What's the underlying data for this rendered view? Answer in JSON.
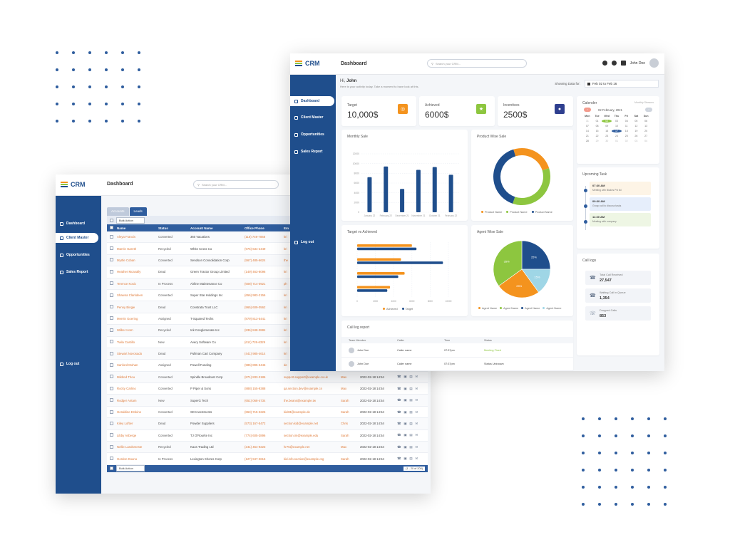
{
  "colors": {
    "primary": "#1f4e8c",
    "header_blue": "#2f5d9e",
    "orange": "#f4931e",
    "green": "#8dc63f",
    "light_blue": "#9fd6e6",
    "link_orange": "#e07b39"
  },
  "leads_window": {
    "logo": "CRM",
    "page_title": "Dashboard",
    "search_placeholder": "Search your CRM...",
    "nav": [
      {
        "label": "Dashboard",
        "icon": "grid-icon"
      },
      {
        "label": "Client Master",
        "icon": "user-icon"
      },
      {
        "label": "Opportunities",
        "icon": "target-icon"
      },
      {
        "label": "Sales Report",
        "icon": "report-icon"
      },
      {
        "label": "Log out",
        "icon": "logout-icon"
      }
    ],
    "tabs": [
      "Accounts",
      "Leads"
    ],
    "bulk_action": "Bulk Action",
    "columns": [
      "Name",
      "Status",
      "Account Name",
      "Office Phone",
      "Em"
    ],
    "rows": [
      {
        "name": "Aleya Francis",
        "status": "Converted",
        "account": "360 Vacations",
        "phone": "(116) 749-7068",
        "email": "kri",
        "owner": "",
        "date": ""
      },
      {
        "name": "Marvin Gareth",
        "status": "Recycled",
        "account": "White Cross Co",
        "phone": "(975) 634-2449",
        "email": "kri",
        "owner": "",
        "date": ""
      },
      {
        "name": "Myrtle Coban",
        "status": "Converted",
        "account": "Sendson Consolidation Corp",
        "phone": "(567) 485-6624",
        "email": "the",
        "owner": "",
        "date": ""
      },
      {
        "name": "Heather Mcanally",
        "status": "Dead",
        "account": "Green Tractor Group Limited",
        "phone": "(149) 463-8096",
        "email": "kri",
        "owner": "",
        "date": ""
      },
      {
        "name": "Terence Kosic",
        "status": "In Process",
        "account": "Airline Maintenance Co",
        "phone": "(608) 714-0921",
        "email": "ph",
        "owner": "",
        "date": ""
      },
      {
        "name": "Shawna Clarkdeen",
        "status": "Converted",
        "account": "Super Star Holdings Inc",
        "phone": "(656) 983-2156",
        "email": "kri",
        "owner": "",
        "date": ""
      },
      {
        "name": "Penny Bingie",
        "status": "Dead",
        "account": "Constrata Trust LLC",
        "phone": "(965) 609-0562",
        "email": "kri",
        "owner": "",
        "date": ""
      },
      {
        "name": "Mervin Goering",
        "status": "Assigned",
        "account": "T-Squared Techs",
        "phone": "(879) 813-5441",
        "email": "kri",
        "owner": "",
        "date": ""
      },
      {
        "name": "Wilber Horn",
        "status": "Recycled",
        "account": "Ink Conglomerate Inc",
        "phone": "(836) 848-3884",
        "email": "kri",
        "owner": "",
        "date": ""
      },
      {
        "name": "Twila Castillo",
        "status": "New",
        "account": "Avery Software Co",
        "phone": "(611) 726-6329",
        "email": "kri",
        "owner": "",
        "date": ""
      },
      {
        "name": "Stewart Novosado",
        "status": "Dead",
        "account": "Pullman Cart Company",
        "phone": "(441) 985-4614",
        "email": "kri",
        "owner": "",
        "date": ""
      },
      {
        "name": "Sanford Mohan",
        "status": "Assigned",
        "account": "Powell Funding",
        "phone": "(985) 895-3446",
        "email": "de",
        "owner": "",
        "date": ""
      },
      {
        "name": "Mildred Thou",
        "status": "Converted",
        "account": "Spindle Broadcast Corp",
        "phone": "(871) 833-3186",
        "email": "support.support@example.co.uk",
        "owner": "Max",
        "date": "2022-02-18 14:54"
      },
      {
        "name": "Rocky Carlino",
        "status": "Converted",
        "account": "P Piper & Sons",
        "phone": "(888) 155-9388",
        "email": "qa.section.dev@example.cn",
        "owner": "Max",
        "date": "2022-02-18 14:54"
      },
      {
        "name": "Rodger Antam",
        "status": "New",
        "account": "SuperG Tech",
        "phone": "(651) 068-4734",
        "email": "the.beans@example.tw",
        "owner": "Sarah",
        "date": "2022-02-18 14:54"
      },
      {
        "name": "Geraldine Erskine",
        "status": "Converted",
        "account": "SD Investments",
        "phone": "(863) 715-3226",
        "email": "kid33@example.de",
        "owner": "Sarah",
        "date": "2022-02-18 14:54"
      },
      {
        "name": "Kiley Loftier",
        "status": "Dead",
        "account": "Powder Suppliers",
        "phone": "(573) 167-5472",
        "email": "section.kid@example.net",
        "owner": "Chris",
        "date": "2022-02-18 14:54"
      },
      {
        "name": "Libby Asberge",
        "status": "Converted",
        "account": "TJ O'Rourke Inc",
        "phone": "(774) 605-3896",
        "email": "section.im@example.edu",
        "owner": "Sarah",
        "date": "2022-02-18 14:54"
      },
      {
        "name": "Nellie Landsmeste",
        "status": "Recycled",
        "account": "Kaos Trading Ltd",
        "phone": "(241) 454-9223",
        "email": "hr75@example.net",
        "owner": "Max",
        "date": "2022-02-18 14:54"
      },
      {
        "name": "Gordon Douno",
        "status": "In Process",
        "account": "Lexington Shores Corp",
        "phone": "(127) 947-3616",
        "email": "kid.info.section@example.org",
        "owner": "Sarah",
        "date": "2022-02-18 14:54"
      }
    ],
    "pager": "(1 - 20 of 200)"
  },
  "dashboard_window": {
    "logo": "CRM",
    "page_title": "Dashboard",
    "search_placeholder": "Search your CRM...",
    "user_name": "John Doe",
    "nav": [
      {
        "label": "Dashboard",
        "icon": "grid-icon"
      },
      {
        "label": "Client Master",
        "icon": "user-icon"
      },
      {
        "label": "Opportunities",
        "icon": "target-icon"
      },
      {
        "label": "Sales Report",
        "icon": "report-icon"
      },
      {
        "label": "Log out",
        "icon": "logout-icon"
      }
    ],
    "greeting_prefix": "Hi,",
    "greeting_name": "John",
    "greeting_sub": "Here is your activity today. Take a moment to have look at this.",
    "showing_label": "Showing Data for:",
    "date_range": "Feb 02 to Feb 16",
    "stats": [
      {
        "label": "Target",
        "value": "10,000$",
        "color": "#f4931e",
        "icon": "target-icon"
      },
      {
        "label": "Achieved",
        "value": "6000$",
        "color": "#8dc63f",
        "icon": "trophy-icon"
      },
      {
        "label": "Incentives",
        "value": "2500$",
        "color": "#2f3f8f",
        "icon": "medal-icon"
      }
    ],
    "monthly_sale": {
      "title": "Monthly Sale"
    },
    "product_wise": {
      "title": "Product Wise Sale",
      "legend": [
        "Product Name",
        "Product Name",
        "Product Name"
      ]
    },
    "target_vs_achieved": {
      "title": "Target vs Achieved",
      "legend": [
        "Achieved",
        "Target"
      ]
    },
    "agent_wise": {
      "title": "Agent Wise Sale",
      "legend": [
        "Agent Name",
        "Agent Name",
        "Agent Name",
        "Agent Name"
      ]
    },
    "calendar": {
      "title": "Calender",
      "link": "Monthly Streams",
      "month": "02 February, 2021",
      "weekdays": [
        "Mon",
        "Tue",
        "Wed",
        "Thu",
        "Fri",
        "Sat",
        "Sun"
      ],
      "days": [
        "31",
        "01",
        "02",
        "03",
        "04",
        "05",
        "06",
        "07",
        "08",
        "09",
        "10",
        "11",
        "12",
        "13",
        "14",
        "15",
        "16",
        "17",
        "18",
        "19",
        "20",
        "21",
        "22",
        "23",
        "24",
        "25",
        "26",
        "27",
        "28",
        "29",
        "30",
        "01",
        "02",
        "03",
        "04"
      ]
    },
    "upcoming": {
      "title": "Upcoming Task",
      "items": [
        {
          "time": "07:30 AM",
          "desc": "Meeting with Blakes Pvt ltd"
        },
        {
          "time": "09:30 AM",
          "desc": "Group call to discuss tasks"
        },
        {
          "time": "11:30 AM",
          "desc": "Meeting with company"
        }
      ]
    },
    "call_logs": {
      "title": "Call logs",
      "items": [
        {
          "label": "Total Call Received",
          "value": "27,547"
        },
        {
          "label": "Waiting Call in Queue",
          "value": "1,354"
        },
        {
          "label": "Dropped Calls",
          "value": "853"
        }
      ]
    },
    "call_log_report": {
      "title": "Call log report",
      "columns": [
        "Team Member",
        "Caller",
        "Time",
        "Status"
      ],
      "rows": [
        {
          "member": "John Doe",
          "caller": "Caller name",
          "time": "07:37pm",
          "status": "Meeting Fixed"
        },
        {
          "member": "John Doe",
          "caller": "Caller name",
          "time": "07:37pm",
          "status": "Status Unknown"
        }
      ]
    }
  },
  "chart_data": [
    {
      "type": "bar",
      "title": "Monthly Sale",
      "categories": [
        "January 22",
        "February 22",
        "December 21",
        "November 21",
        "October 21",
        "February 22"
      ],
      "values": [
        7200,
        9400,
        4800,
        8700,
        9300,
        7700
      ],
      "ylim": [
        0,
        12000
      ],
      "yticks": [
        0,
        2000,
        4000,
        6000,
        8000,
        10000,
        12000
      ]
    },
    {
      "type": "pie",
      "title": "Product Wise Sale",
      "donut": true,
      "labels": [
        "Product Name",
        "Product Name",
        "Product Name"
      ],
      "values": [
        25,
        35,
        40
      ],
      "colors": [
        "#f4931e",
        "#8dc63f",
        "#1f4e8c"
      ]
    },
    {
      "type": "bar",
      "orientation": "horizontal",
      "title": "Target vs Achieved",
      "categories": [
        "",
        "",
        "",
        ""
      ],
      "series": [
        {
          "name": "Achieved",
          "values": [
            6000,
            4800,
            5200,
            3600
          ],
          "color": "#f4931e"
        },
        {
          "name": "Target",
          "values": [
            6500,
            9400,
            4500,
            3300
          ],
          "color": "#1f4e8c"
        }
      ],
      "xlim": [
        0,
        10000
      ],
      "xticks": [
        0,
        2000,
        4000,
        6000,
        8000,
        10000
      ]
    },
    {
      "type": "pie",
      "title": "Agent Wise Sale",
      "labels": [
        "Agent Name",
        "Agent Name",
        "Agent Name",
        "Agent Name"
      ],
      "values": [
        25,
        15,
        25,
        35
      ],
      "display": [
        "25%",
        "15%",
        "25%",
        "35%"
      ],
      "colors": [
        "#1f4e8c",
        "#9fd6e6",
        "#f4931e",
        "#8dc63f"
      ]
    }
  ]
}
